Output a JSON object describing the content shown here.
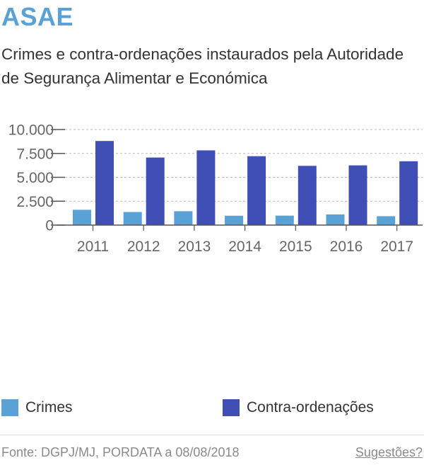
{
  "header": {
    "title": "ASAE",
    "subtitle": "Crimes e contra-ordenações instaurados pela Autoridade de Segurança Alimentar e Económica"
  },
  "chart_data": {
    "type": "bar",
    "categories": [
      "2011",
      "2012",
      "2013",
      "2014",
      "2015",
      "2016",
      "2017"
    ],
    "series": [
      {
        "name": "Crimes",
        "color": "#5aa1d6",
        "values": [
          1600,
          1370,
          1450,
          980,
          990,
          1120,
          930
        ]
      },
      {
        "name": "Contra-ordenações",
        "color": "#3f4fb5",
        "values": [
          8800,
          7070,
          7820,
          7210,
          6200,
          6250,
          6680
        ]
      }
    ],
    "yticks": [
      {
        "value": 0,
        "label": "0"
      },
      {
        "value": 2500,
        "label": "2.500"
      },
      {
        "value": 5000,
        "label": "5.000"
      },
      {
        "value": 7500,
        "label": "7.500"
      },
      {
        "value": 10000,
        "label": "10.000"
      }
    ],
    "ylim": [
      0,
      10000
    ],
    "grid": true,
    "legend_position": "bottom"
  },
  "legend": {
    "crimes": {
      "label": "Crimes",
      "color": "#5aa1d6"
    },
    "contra": {
      "label": "Contra-ordenações",
      "color": "#3f4fb5"
    }
  },
  "footer": {
    "source": "Fonte: DGPJ/MJ, PORDATA a 08/08/2018",
    "suggestions": "Sugestões?"
  }
}
